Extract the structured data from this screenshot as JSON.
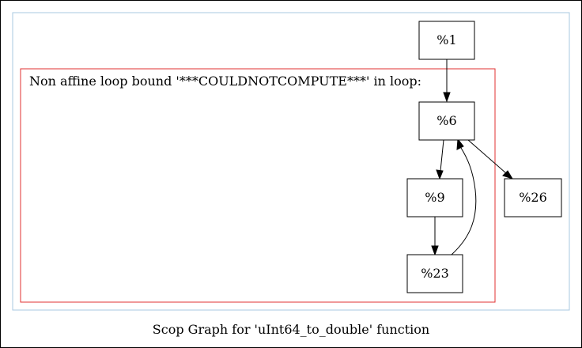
{
  "caption": "Scop Graph for 'uInt64_to_double' function",
  "region_label": "Non affine loop bound '***COULDNOTCOMPUTE***' in loop:",
  "colors": {
    "outer_border": "#000000",
    "scop_border": "#a8c8e0",
    "region_border": "#e03030",
    "node_border": "#000000"
  },
  "nodes": [
    {
      "id": "n1",
      "label": "%1"
    },
    {
      "id": "n6",
      "label": "%6"
    },
    {
      "id": "n9",
      "label": "%9"
    },
    {
      "id": "n23",
      "label": "%23"
    },
    {
      "id": "n26",
      "label": "%26"
    }
  ],
  "edges": [
    {
      "from": "n1",
      "to": "n6"
    },
    {
      "from": "n6",
      "to": "n9"
    },
    {
      "from": "n6",
      "to": "n26"
    },
    {
      "from": "n9",
      "to": "n23"
    },
    {
      "from": "n23",
      "to": "n6"
    }
  ]
}
